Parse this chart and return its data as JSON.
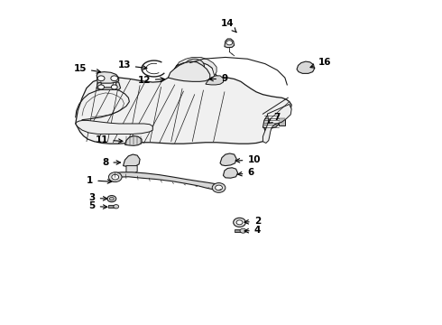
{
  "bg_color": "#ffffff",
  "line_color": "#1a1a1a",
  "fig_width": 4.9,
  "fig_height": 3.6,
  "dpi": 100,
  "labels": {
    "14": [
      0.53,
      0.93,
      0.54,
      0.895
    ],
    "13": [
      0.295,
      0.8,
      0.34,
      0.79
    ],
    "15": [
      0.195,
      0.79,
      0.235,
      0.778
    ],
    "12": [
      0.34,
      0.755,
      0.38,
      0.758
    ],
    "9": [
      0.5,
      0.758,
      0.465,
      0.758
    ],
    "16": [
      0.72,
      0.81,
      0.695,
      0.79
    ],
    "7": [
      0.62,
      0.64,
      0.605,
      0.62
    ],
    "11": [
      0.245,
      0.57,
      0.285,
      0.565
    ],
    "8": [
      0.245,
      0.5,
      0.28,
      0.5
    ],
    "10": [
      0.56,
      0.508,
      0.525,
      0.505
    ],
    "6": [
      0.56,
      0.468,
      0.53,
      0.462
    ],
    "1": [
      0.21,
      0.445,
      0.26,
      0.44
    ],
    "3": [
      0.215,
      0.39,
      0.25,
      0.388
    ],
    "5": [
      0.215,
      0.365,
      0.25,
      0.362
    ],
    "2": [
      0.575,
      0.318,
      0.545,
      0.315
    ],
    "4": [
      0.575,
      0.29,
      0.545,
      0.288
    ]
  }
}
